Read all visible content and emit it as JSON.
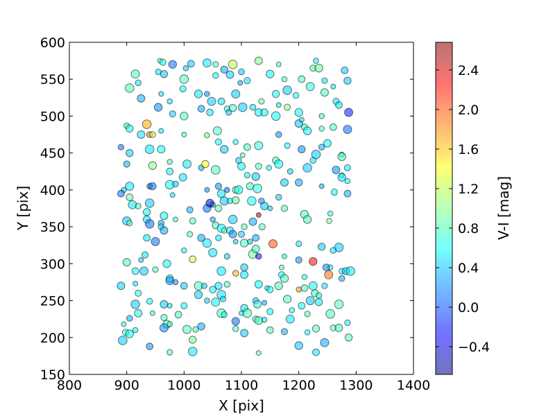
{
  "chart_data": {
    "type": "scatter",
    "title": "",
    "xlabel": "X [pix]",
    "ylabel": "Y [pix]",
    "xlim": [
      800,
      1400
    ],
    "ylim": [
      150,
      600
    ],
    "xticks": [
      "800",
      "900",
      "1000",
      "1100",
      "1200",
      "1300",
      "1400"
    ],
    "yticks": [
      "150",
      "200",
      "250",
      "300",
      "350",
      "400",
      "450",
      "500",
      "550",
      "600"
    ],
    "grid": false,
    "colorbar": {
      "label": "V-I [mag]",
      "range": [
        -0.68,
        2.68
      ],
      "ticks": [
        "−0.4",
        "0.0",
        "0.4",
        "0.8",
        "1.2",
        "1.6",
        "2.0",
        "2.4"
      ],
      "tick_values": [
        -0.4,
        0.0,
        0.4,
        0.8,
        1.2,
        1.6,
        2.0,
        2.4
      ],
      "colormap": "jet",
      "alpha": 0.55
    },
    "points": [
      [
        958,
        575,
        0.8
      ],
      [
        963,
        573,
        0.6
      ],
      [
        980,
        570,
        0.1
      ],
      [
        1003,
        565,
        0.4
      ],
      [
        1012,
        571,
        0.4
      ],
      [
        1040,
        572,
        0.5
      ],
      [
        1055,
        570,
        0.8
      ],
      [
        1070,
        563,
        0.3
      ],
      [
        1085,
        570,
        1.2
      ],
      [
        1100,
        560,
        0.4
      ],
      [
        1130,
        575,
        1.0
      ],
      [
        1165,
        570,
        0.8
      ],
      [
        1225,
        565,
        0.8
      ],
      [
        1235,
        565,
        0.9
      ],
      [
        1230,
        575,
        0.6
      ],
      [
        1280,
        562,
        0.4
      ],
      [
        915,
        557,
        0.8
      ],
      [
        955,
        560,
        0.5
      ],
      [
        965,
        557,
        0.4
      ],
      [
        1000,
        550,
        0.8
      ],
      [
        1055,
        555,
        0.6
      ],
      [
        1080,
        556,
        0.4
      ],
      [
        1098,
        545,
        0.3
      ],
      [
        1110,
        548,
        0.5
      ],
      [
        1150,
        557,
        0.6
      ],
      [
        1175,
        550,
        0.8
      ],
      [
        1205,
        550,
        0.8
      ],
      [
        1220,
        540,
        0.7
      ],
      [
        1245,
        548,
        0.5
      ],
      [
        1285,
        548,
        0.4
      ],
      [
        905,
        538,
        0.8
      ],
      [
        920,
        545,
        0.5
      ],
      [
        925,
        524,
        0.3
      ],
      [
        960,
        530,
        0.5
      ],
      [
        998,
        537,
        0.6
      ],
      [
        1025,
        530,
        0.5
      ],
      [
        1040,
        530,
        0.2
      ],
      [
        1065,
        520,
        0.5
      ],
      [
        1090,
        530,
        0.4
      ],
      [
        1135,
        520,
        0.9
      ],
      [
        1160,
        530,
        0.6
      ],
      [
        1180,
        535,
        0.4
      ],
      [
        1195,
        528,
        0.6
      ],
      [
        1245,
        532,
        0.8
      ],
      [
        1260,
        540,
        0.5
      ],
      [
        1265,
        520,
        0.5
      ],
      [
        955,
        512,
        0.2
      ],
      [
        975,
        520,
        0.5
      ],
      [
        1030,
        510,
        0.3
      ],
      [
        1048,
        520,
        0.4
      ],
      [
        1075,
        510,
        0.7
      ],
      [
        1085,
        511,
        0.8
      ],
      [
        1102,
        512,
        0.4
      ],
      [
        1120,
        512,
        0.5
      ],
      [
        1130,
        505,
        0.6
      ],
      [
        1165,
        515,
        0.5
      ],
      [
        1180,
        512,
        1.0
      ],
      [
        1200,
        505,
        0.6
      ],
      [
        1240,
        500,
        0.8
      ],
      [
        1270,
        515,
        0.5
      ],
      [
        1287,
        505,
        -0.2
      ],
      [
        900,
        487,
        0.7
      ],
      [
        905,
        483,
        0.6
      ],
      [
        935,
        489,
        1.7
      ],
      [
        940,
        475,
        1.9
      ],
      [
        925,
        475,
        0.5
      ],
      [
        960,
        480,
        0.5
      ],
      [
        980,
        503,
        0.4
      ],
      [
        1000,
        500,
        0.8
      ],
      [
        1040,
        474,
        1.0
      ],
      [
        1045,
        505,
        0.5
      ],
      [
        1058,
        480,
        0.8
      ],
      [
        1078,
        505,
        0.4
      ],
      [
        1140,
        505,
        0.6
      ],
      [
        1160,
        500,
        0.6
      ],
      [
        1165,
        475,
        0.2
      ],
      [
        1200,
        490,
        0.4
      ],
      [
        1205,
        495,
        0.5
      ],
      [
        1210,
        485,
        0.7
      ],
      [
        1215,
        480,
        0.6
      ],
      [
        1240,
        483,
        0.8
      ],
      [
        1260,
        485,
        0.8
      ],
      [
        1285,
        482,
        0.1
      ],
      [
        890,
        458,
        0.1
      ],
      [
        905,
        450,
        0.4
      ],
      [
        940,
        455,
        0.5
      ],
      [
        945,
        475,
        1.2
      ],
      [
        960,
        455,
        0.6
      ],
      [
        1000,
        475,
        0.7
      ],
      [
        1060,
        465,
        0.6
      ],
      [
        1070,
        455,
        0.4
      ],
      [
        1090,
        465,
        0.6
      ],
      [
        1110,
        458,
        0.8
      ],
      [
        1130,
        460,
        0.7
      ],
      [
        1180,
        460,
        0.6
      ],
      [
        1205,
        455,
        0.2
      ],
      [
        1230,
        448,
        0.4
      ],
      [
        1240,
        458,
        0.3
      ],
      [
        1250,
        463,
        0.6
      ],
      [
        1275,
        448,
        0.6
      ],
      [
        900,
        435,
        0.3
      ],
      [
        945,
        433,
        1.0
      ],
      [
        975,
        438,
        0.8
      ],
      [
        975,
        425,
        0.6
      ],
      [
        1005,
        435,
        0.5
      ],
      [
        1030,
        430,
        0.3
      ],
      [
        1037,
        435,
        1.4
      ],
      [
        1055,
        427,
        0.8
      ],
      [
        1095,
        440,
        0.4
      ],
      [
        1100,
        432,
        0.6
      ],
      [
        1102,
        447,
        0.8
      ],
      [
        1130,
        432,
        0.8
      ],
      [
        1125,
        418,
        0.4
      ],
      [
        1148,
        430,
        0.6
      ],
      [
        1160,
        440,
        0.8
      ],
      [
        1165,
        435,
        0.6
      ],
      [
        1185,
        425,
        0.4
      ],
      [
        1200,
        410,
        0.3
      ],
      [
        1215,
        430,
        0.4
      ],
      [
        1225,
        440,
        0.5
      ],
      [
        1265,
        427,
        0.2
      ],
      [
        1275,
        420,
        0.6
      ],
      [
        1285,
        430,
        0.5
      ],
      [
        1275,
        445,
        0.8
      ],
      [
        895,
        400,
        0.4
      ],
      [
        890,
        395,
        0.1
      ],
      [
        905,
        405,
        0.5
      ],
      [
        940,
        405,
        0.1
      ],
      [
        945,
        405,
        0.1
      ],
      [
        975,
        407,
        0.6
      ],
      [
        985,
        408,
        0.4
      ],
      [
        998,
        417,
        0.5
      ],
      [
        1040,
        400,
        0.2
      ],
      [
        1060,
        405,
        0.2
      ],
      [
        1065,
        395,
        0.5
      ],
      [
        1075,
        400,
        0.1
      ],
      [
        1090,
        400,
        0.9
      ],
      [
        1095,
        400,
        0.6
      ],
      [
        1110,
        420,
        0.6
      ],
      [
        1115,
        405,
        0.7
      ],
      [
        1128,
        402,
        0.7
      ],
      [
        1165,
        390,
        0.4
      ],
      [
        1175,
        410,
        0.4
      ],
      [
        1240,
        405,
        0.3
      ],
      [
        1262,
        397,
        0.6
      ],
      [
        1275,
        417,
        0.5
      ],
      [
        1285,
        412,
        0.6
      ],
      [
        905,
        390,
        0.9
      ],
      [
        910,
        380,
        0.5
      ],
      [
        920,
        378,
        0.8
      ],
      [
        935,
        370,
        0.6
      ],
      [
        940,
        382,
        0.4
      ],
      [
        960,
        355,
        0.3
      ],
      [
        965,
        365,
        0.6
      ],
      [
        980,
        393,
        0.5
      ],
      [
        1010,
        373,
        0.3
      ],
      [
        1040,
        375,
        0.1
      ],
      [
        1050,
        380,
        0.3
      ],
      [
        1060,
        375,
        0.8
      ],
      [
        1070,
        385,
        0.4
      ],
      [
        1080,
        385,
        0.5
      ],
      [
        1090,
        386,
        0.9
      ],
      [
        1118,
        385,
        0.6
      ],
      [
        1135,
        385,
        0.2
      ],
      [
        1140,
        378,
        0.4
      ],
      [
        1150,
        375,
        0.4
      ],
      [
        1175,
        375,
        0.8
      ],
      [
        1210,
        367,
        0.8
      ],
      [
        1255,
        368,
        0.7
      ],
      [
        1285,
        395,
        0.3
      ],
      [
        900,
        358,
        0.4
      ],
      [
        905,
        355,
        0.9
      ],
      [
        935,
        360,
        0.5
      ],
      [
        940,
        354,
        0.1
      ],
      [
        960,
        350,
        0.5
      ],
      [
        965,
        345,
        0.3
      ],
      [
        985,
        360,
        0.8
      ],
      [
        1015,
        358,
        0.8
      ],
      [
        1045,
        382,
        -0.4
      ],
      [
        1050,
        360,
        0.3
      ],
      [
        1055,
        352,
        0.8
      ],
      [
        1065,
        348,
        0.6
      ],
      [
        1070,
        345,
        0.8
      ],
      [
        1080,
        345,
        0.5
      ],
      [
        1085,
        360,
        0.4
      ],
      [
        1105,
        350,
        0.8
      ],
      [
        1120,
        357,
        0.3
      ],
      [
        1130,
        366,
        2.6
      ],
      [
        1136,
        350,
        0.8
      ],
      [
        1215,
        360,
        0.8
      ],
      [
        1253,
        358,
        1.0
      ],
      [
        935,
        335,
        0.5
      ],
      [
        950,
        330,
        0.1
      ],
      [
        1010,
        340,
        0.8
      ],
      [
        1030,
        335,
        0.3
      ],
      [
        1040,
        328,
        0.5
      ],
      [
        1060,
        335,
        0.5
      ],
      [
        1085,
        340,
        0.2
      ],
      [
        1090,
        330,
        0.4
      ],
      [
        1100,
        340,
        0.4
      ],
      [
        1105,
        328,
        0.8
      ],
      [
        1115,
        330,
        0.4
      ],
      [
        1125,
        335,
        0.3
      ],
      [
        1155,
        327,
        2.0
      ],
      [
        1200,
        327,
        0.5
      ],
      [
        1240,
        323,
        0.4
      ],
      [
        1270,
        322,
        0.4
      ],
      [
        1260,
        318,
        0.5
      ],
      [
        900,
        302,
        0.8
      ],
      [
        925,
        305,
        0.4
      ],
      [
        932,
        312,
        0.5
      ],
      [
        970,
        300,
        0.6
      ],
      [
        1000,
        318,
        0.6
      ],
      [
        1015,
        306,
        1.3
      ],
      [
        1050,
        315,
        0.5
      ],
      [
        1075,
        310,
        0.4
      ],
      [
        1105,
        295,
        0.4
      ],
      [
        1120,
        313,
        0.9
      ],
      [
        1130,
        310,
        -0.2
      ],
      [
        1125,
        320,
        0.8
      ],
      [
        1175,
        310,
        0.6
      ],
      [
        1200,
        305,
        0.2
      ],
      [
        1225,
        303,
        2.3
      ],
      [
        1255,
        295,
        0.6
      ],
      [
        915,
        290,
        0.6
      ],
      [
        930,
        290,
        0.4
      ],
      [
        950,
        292,
        0.8
      ],
      [
        975,
        280,
        0.6
      ],
      [
        1065,
        290,
        0.5
      ],
      [
        1090,
        287,
        1.7
      ],
      [
        1105,
        285,
        0.5
      ],
      [
        1170,
        295,
        0.8
      ],
      [
        1170,
        285,
        0.6
      ],
      [
        1175,
        280,
        0.8
      ],
      [
        1210,
        282,
        0.6
      ],
      [
        1248,
        295,
        0.2
      ],
      [
        1252,
        285,
        1.9
      ],
      [
        1275,
        290,
        0.6
      ],
      [
        1282,
        290,
        0.4
      ],
      [
        1290,
        290,
        0.5
      ],
      [
        1275,
        280,
        0.3
      ],
      [
        890,
        270,
        0.4
      ],
      [
        915,
        273,
        0.5
      ],
      [
        920,
        260,
        0.7
      ],
      [
        975,
        277,
        0.2
      ],
      [
        985,
        275,
        0.2
      ],
      [
        1000,
        270,
        0.4
      ],
      [
        1025,
        270,
        0.8
      ],
      [
        1035,
        270,
        0.4
      ],
      [
        1060,
        270,
        0.5
      ],
      [
        1065,
        258,
        0.5
      ],
      [
        1075,
        272,
        0.8
      ],
      [
        1130,
        272,
        0.6
      ],
      [
        1145,
        267,
        0.5
      ],
      [
        1150,
        265,
        0.6
      ],
      [
        1165,
        270,
        0.8
      ],
      [
        1200,
        265,
        1.8
      ],
      [
        1210,
        267,
        0.8
      ],
      [
        1225,
        270,
        0.6
      ],
      [
        1245,
        270,
        0.5
      ],
      [
        1228,
        260,
        0.8
      ],
      [
        915,
        245,
        0.4
      ],
      [
        940,
        249,
        0.6
      ],
      [
        965,
        245,
        0.4
      ],
      [
        975,
        243,
        0.5
      ],
      [
        1000,
        243,
        0.6
      ],
      [
        1025,
        258,
        0.4
      ],
      [
        1040,
        250,
        0.4
      ],
      [
        1050,
        265,
        0.6
      ],
      [
        1055,
        248,
        0.6
      ],
      [
        1068,
        252,
        0.5
      ],
      [
        1105,
        240,
        0.5
      ],
      [
        1110,
        233,
        0.8
      ],
      [
        1125,
        250,
        0.4
      ],
      [
        1128,
        245,
        0.7
      ],
      [
        1140,
        247,
        0.3
      ],
      [
        1150,
        235,
        0.6
      ],
      [
        1180,
        252,
        0.8
      ],
      [
        1188,
        237,
        0.6
      ],
      [
        1205,
        243,
        0.6
      ],
      [
        1220,
        250,
        0.4
      ],
      [
        1235,
        257,
        0.7
      ],
      [
        1235,
        248,
        0.5
      ],
      [
        1270,
        245,
        0.8
      ],
      [
        905,
        226,
        0.3
      ],
      [
        920,
        233,
        0.6
      ],
      [
        945,
        233,
        0.7
      ],
      [
        965,
        227,
        0.8
      ],
      [
        970,
        218,
        0.8
      ],
      [
        975,
        218,
        0.8
      ],
      [
        990,
        231,
        0.8
      ],
      [
        1005,
        211,
        0.8
      ],
      [
        1020,
        211,
        0.8
      ],
      [
        1030,
        215,
        0.3
      ],
      [
        1065,
        233,
        0.8
      ],
      [
        1070,
        231,
        0.6
      ],
      [
        1090,
        222,
        0.1
      ],
      [
        1100,
        233,
        0.5
      ],
      [
        1125,
        225,
        0.8
      ],
      [
        1130,
        223,
        0.8
      ],
      [
        1140,
        224,
        0.5
      ],
      [
        1150,
        210,
        0.8
      ],
      [
        1185,
        225,
        0.5
      ],
      [
        1215,
        232,
        0.8
      ],
      [
        1230,
        212,
        0.8
      ],
      [
        1255,
        232,
        0.8
      ],
      [
        1260,
        213,
        0.9
      ],
      [
        1270,
        213,
        0.8
      ],
      [
        895,
        218,
        0.7
      ],
      [
        898,
        207,
        0.7
      ],
      [
        905,
        205,
        0.6
      ],
      [
        915,
        210,
        0.6
      ],
      [
        940,
        188,
        0.2
      ],
      [
        965,
        213,
        0.2
      ],
      [
        975,
        180,
        0.8
      ],
      [
        1015,
        197,
        0.9
      ],
      [
        1015,
        181,
        0.5
      ],
      [
        1090,
        212,
        0.8
      ],
      [
        1105,
        206,
        0.4
      ],
      [
        1130,
        179,
        0.9
      ],
      [
        1175,
        208,
        0.3
      ],
      [
        1200,
        189,
        0.4
      ],
      [
        1215,
        207,
        0.6
      ],
      [
        1230,
        180,
        0.5
      ],
      [
        1245,
        193,
        0.3
      ],
      [
        1285,
        220,
        0.6
      ],
      [
        1287,
        200,
        0.8
      ],
      [
        893,
        196,
        0.4
      ]
    ]
  }
}
